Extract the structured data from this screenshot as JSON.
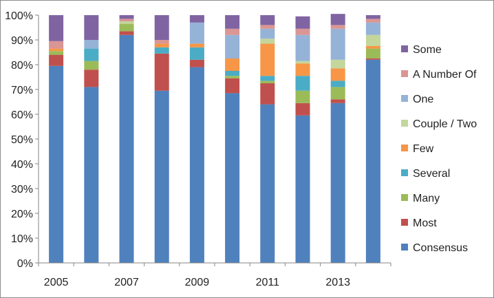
{
  "chart_data": {
    "type": "bar",
    "stacked": true,
    "categories": [
      "2005",
      "2006",
      "2007",
      "2008",
      "2009",
      "2010",
      "2011",
      "2012",
      "2013",
      "2014"
    ],
    "x_tick_labels": [
      "2005",
      "2007",
      "2009",
      "2011",
      "2013"
    ],
    "ylim": [
      0,
      100
    ],
    "y_ticks": [
      0,
      10,
      20,
      30,
      40,
      50,
      60,
      70,
      80,
      90,
      100
    ],
    "y_tick_suffix": "%",
    "grid": false,
    "legend_position": "right",
    "series": [
      {
        "name": "Consensus",
        "color": "#4f81bd",
        "values": [
          79.5,
          71,
          92,
          69.5,
          79,
          68.5,
          64,
          59.5,
          64.5,
          82
        ]
      },
      {
        "name": "Most",
        "color": "#c0504d",
        "values": [
          4.5,
          7,
          1.5,
          15,
          3,
          6,
          8.5,
          5,
          1.5,
          0.5
        ]
      },
      {
        "name": "Many",
        "color": "#9bbb59",
        "values": [
          1.5,
          3.5,
          3,
          0,
          0,
          1,
          1,
          5,
          5,
          4
        ]
      },
      {
        "name": "Several",
        "color": "#4bacc6",
        "values": [
          0,
          5,
          0,
          2.5,
          5,
          2,
          2,
          6,
          2.5,
          0
        ]
      },
      {
        "name": "Few",
        "color": "#f79646",
        "values": [
          1,
          0,
          0,
          1.5,
          1.5,
          5,
          13,
          5,
          5,
          1
        ]
      },
      {
        "name": "Couple / Two",
        "color": "#c3d69b",
        "values": [
          0,
          0,
          1,
          0,
          0,
          0,
          2,
          1,
          3.5,
          4.5
        ]
      },
      {
        "name": "One",
        "color": "#95b3d7",
        "values": [
          0,
          3.5,
          0,
          0,
          8.5,
          9.5,
          4,
          10.5,
          12.5,
          5
        ]
      },
      {
        "name": "A Number Of",
        "color": "#da9694",
        "values": [
          3,
          0,
          1,
          1.5,
          0,
          2.5,
          1.5,
          2.5,
          1.5,
          1.5
        ]
      },
      {
        "name": "Some",
        "color": "#8064a2",
        "values": [
          10.5,
          10,
          1.5,
          10,
          3,
          5.5,
          4,
          5,
          4.5,
          1.5
        ]
      }
    ]
  }
}
